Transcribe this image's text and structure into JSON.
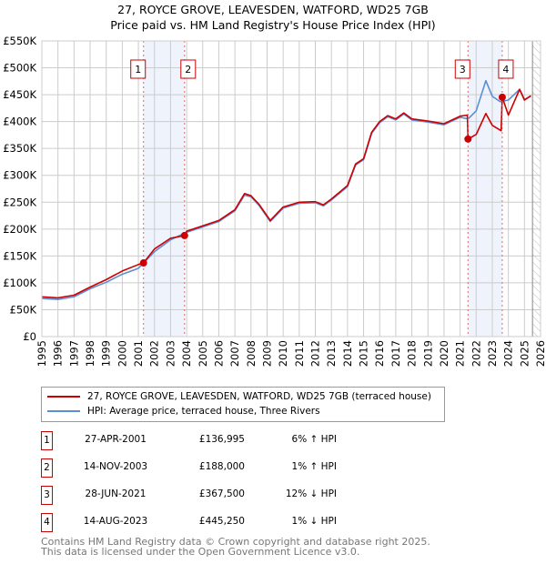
{
  "title": "27, ROYCE GROVE, LEAVESDEN, WATFORD, WD25 7GB",
  "subtitle": "Price paid vs. HM Land Registry's House Price Index (HPI)",
  "chart_data": {
    "type": "line",
    "xlim": [
      1995,
      2026
    ],
    "ylim": [
      0,
      550000
    ],
    "x_ticks": [
      "1995",
      "1996",
      "1997",
      "1998",
      "1999",
      "2000",
      "2001",
      "2002",
      "2003",
      "2004",
      "2005",
      "2006",
      "2007",
      "2008",
      "2009",
      "2010",
      "2011",
      "2012",
      "2013",
      "2014",
      "2015",
      "2016",
      "2017",
      "2018",
      "2019",
      "2020",
      "2021",
      "2022",
      "2023",
      "2024",
      "2025",
      "2026"
    ],
    "y_ticks": [
      {
        "v": 0,
        "l": "£0"
      },
      {
        "v": 50000,
        "l": "£50K"
      },
      {
        "v": 100000,
        "l": "£100K"
      },
      {
        "v": 150000,
        "l": "£150K"
      },
      {
        "v": 200000,
        "l": "£200K"
      },
      {
        "v": 250000,
        "l": "£250K"
      },
      {
        "v": 300000,
        "l": "£300K"
      },
      {
        "v": 350000,
        "l": "£350K"
      },
      {
        "v": 400000,
        "l": "£400K"
      },
      {
        "v": 450000,
        "l": "£450K"
      },
      {
        "v": 500000,
        "l": "£500K"
      },
      {
        "v": 550000,
        "l": "£550K"
      }
    ],
    "series": [
      {
        "name": "27, ROYCE GROVE, LEAVESDEN, WATFORD, WD25 7GB (terraced house)",
        "color": "#cc0000",
        "points": [
          [
            1995,
            74000
          ],
          [
            1996,
            72000
          ],
          [
            1997,
            77000
          ],
          [
            1998,
            92000
          ],
          [
            1999,
            106000
          ],
          [
            2000,
            122000
          ],
          [
            2001,
            134000
          ],
          [
            2001.32,
            136995
          ],
          [
            2002,
            163000
          ],
          [
            2003,
            183000
          ],
          [
            2003.87,
            188000
          ],
          [
            2004,
            196000
          ],
          [
            2005,
            206000
          ],
          [
            2006,
            216000
          ],
          [
            2007,
            236000
          ],
          [
            2007.6,
            266000
          ],
          [
            2008,
            262000
          ],
          [
            2008.5,
            246000
          ],
          [
            2009.2,
            216000
          ],
          [
            2010,
            241000
          ],
          [
            2011,
            250000
          ],
          [
            2012,
            251000
          ],
          [
            2012.5,
            245000
          ],
          [
            2013,
            256000
          ],
          [
            2014,
            281000
          ],
          [
            2014.5,
            321000
          ],
          [
            2015,
            331000
          ],
          [
            2015.5,
            380000
          ],
          [
            2016,
            400000
          ],
          [
            2016.5,
            411000
          ],
          [
            2017,
            405000
          ],
          [
            2017.5,
            416000
          ],
          [
            2018,
            405000
          ],
          [
            2019,
            401000
          ],
          [
            2020,
            396000
          ],
          [
            2021,
            410000
          ],
          [
            2021.45,
            412000
          ],
          [
            2021.49,
            367500
          ],
          [
            2022,
            376000
          ],
          [
            2022.6,
            415000
          ],
          [
            2023,
            393000
          ],
          [
            2023.55,
            383000
          ],
          [
            2023.62,
            445250
          ],
          [
            2024,
            412000
          ],
          [
            2024.7,
            460000
          ],
          [
            2025,
            440000
          ],
          [
            2025.4,
            448000
          ]
        ]
      },
      {
        "name": "HPI: Average price, terraced house, Three Rivers",
        "color": "#5b8fd4",
        "points": [
          [
            1995,
            71000
          ],
          [
            1996,
            69000
          ],
          [
            1997,
            74000
          ],
          [
            1998,
            89000
          ],
          [
            1999,
            101000
          ],
          [
            2000,
            116000
          ],
          [
            2001,
            127000
          ],
          [
            2002,
            158000
          ],
          [
            2003,
            180000
          ],
          [
            2004,
            194000
          ],
          [
            2005,
            204000
          ],
          [
            2006,
            214000
          ],
          [
            2007,
            234000
          ],
          [
            2007.6,
            263000
          ],
          [
            2008,
            260000
          ],
          [
            2008.5,
            244000
          ],
          [
            2009.2,
            214000
          ],
          [
            2010,
            239000
          ],
          [
            2011,
            248000
          ],
          [
            2012,
            249000
          ],
          [
            2012.5,
            243000
          ],
          [
            2013,
            254000
          ],
          [
            2014,
            279000
          ],
          [
            2014.5,
            319000
          ],
          [
            2015,
            329000
          ],
          [
            2015.5,
            378000
          ],
          [
            2016,
            398000
          ],
          [
            2016.5,
            409000
          ],
          [
            2017,
            403000
          ],
          [
            2017.5,
            414000
          ],
          [
            2018,
            403000
          ],
          [
            2019,
            399000
          ],
          [
            2020,
            394000
          ],
          [
            2021,
            408000
          ],
          [
            2021.5,
            405000
          ],
          [
            2022,
            420000
          ],
          [
            2022.6,
            476000
          ],
          [
            2023,
            447000
          ],
          [
            2023.5,
            437000
          ],
          [
            2024,
            440000
          ],
          [
            2024.7,
            460000
          ],
          [
            2025,
            441000
          ],
          [
            2025.4,
            448000
          ]
        ]
      }
    ],
    "sales": [
      {
        "id": "1",
        "x": 2001.32,
        "price": 136995
      },
      {
        "id": "2",
        "x": 2003.87,
        "price": 188000
      },
      {
        "id": "3",
        "x": 2021.49,
        "price": 367500
      },
      {
        "id": "4",
        "x": 2023.62,
        "price": 445250
      }
    ],
    "shaded_ranges": [
      [
        2001.32,
        2003.87
      ],
      [
        2021.49,
        2023.62
      ]
    ],
    "forecast_hatch_from": 2025.0
  },
  "legend": {
    "items": [
      "27, ROYCE GROVE, LEAVESDEN, WATFORD, WD25 7GB (terraced house)",
      "HPI: Average price, terraced house, Three Rivers"
    ]
  },
  "transactions": [
    {
      "id": "1",
      "date": "27-APR-2001",
      "price": "£136,995",
      "hpi": "6% ↑ HPI"
    },
    {
      "id": "2",
      "date": "14-NOV-2003",
      "price": "£188,000",
      "hpi": "1% ↑ HPI"
    },
    {
      "id": "3",
      "date": "28-JUN-2021",
      "price": "£367,500",
      "hpi": "12% ↓ HPI"
    },
    {
      "id": "4",
      "date": "14-AUG-2023",
      "price": "£445,250",
      "hpi": "1% ↓ HPI"
    }
  ],
  "footer": {
    "line1": "Contains HM Land Registry data © Crown copyright and database right 2025.",
    "line2": "This data is licensed under the Open Government Licence v3.0."
  }
}
